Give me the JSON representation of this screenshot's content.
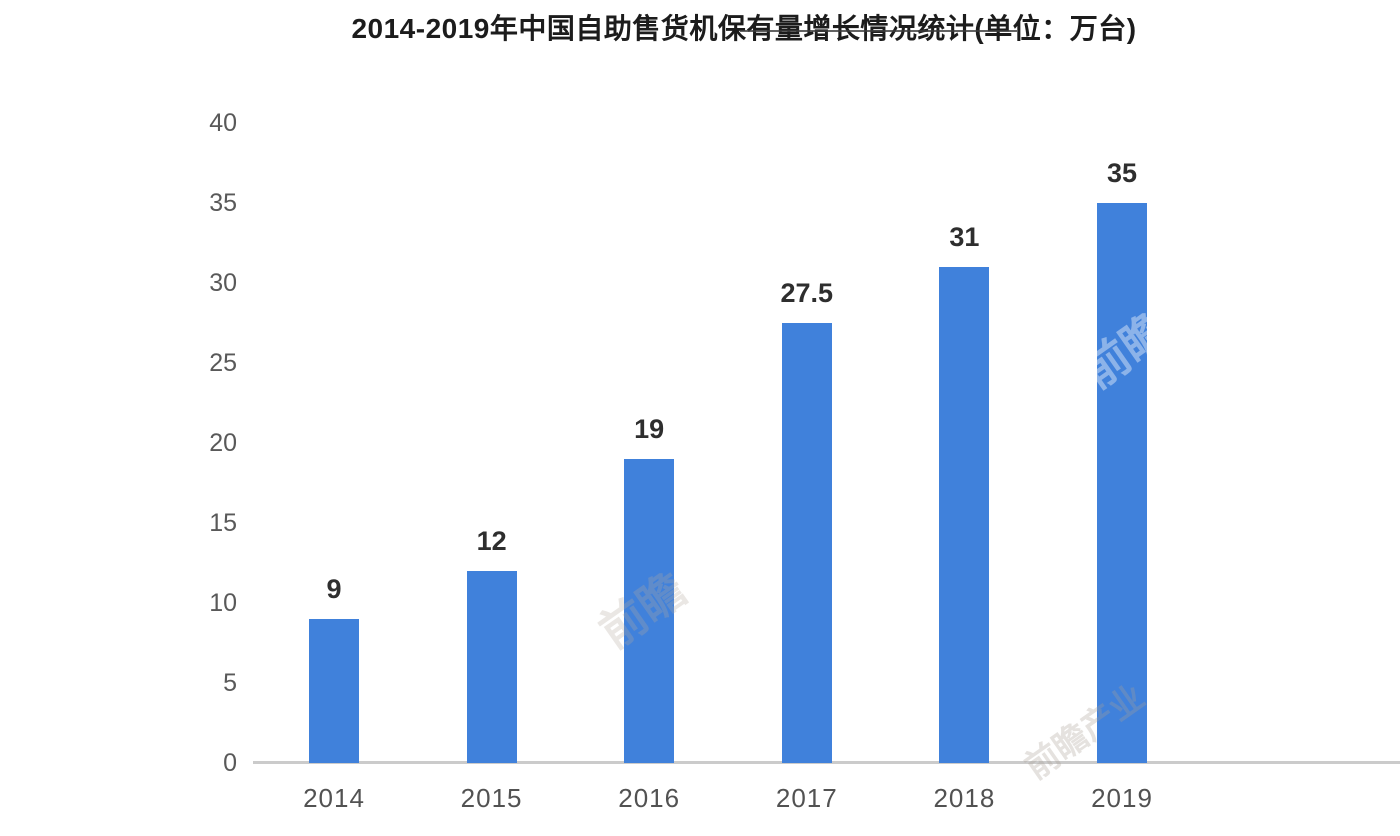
{
  "title": "2014-2019年中国自助售货机保有量增长情况统计(单位：万台)",
  "chart_data": {
    "type": "bar",
    "title": "2014-2019年中国自助售货机保有量增长情况统计(单位：万台)",
    "categories": [
      "2014",
      "2015",
      "2016",
      "2017",
      "2018",
      "2019"
    ],
    "values": [
      9,
      12,
      19,
      27.5,
      31,
      35
    ],
    "data_labels": [
      "9",
      "12",
      "19",
      "27.5",
      "31",
      "35"
    ],
    "xlabel": "",
    "ylabel": "",
    "unit": "万台",
    "ylim": [
      0,
      40
    ],
    "yticks": [
      0,
      5,
      10,
      15,
      20,
      25,
      30,
      35,
      40
    ],
    "grid": false,
    "legend_position": "none",
    "bar_color": "#4081db"
  },
  "colors": {
    "bar": "#4081db",
    "axis_line": "#cbcbcb",
    "tick_label": "#595959",
    "category_label": "#525252",
    "value_label": "#2e2e2e",
    "title": "#1c1c1c",
    "background": "#ffffff"
  },
  "watermarks": [
    {
      "text": "前瞻"
    },
    {
      "text": "前瞻"
    },
    {
      "text": "前瞻产业"
    }
  ]
}
